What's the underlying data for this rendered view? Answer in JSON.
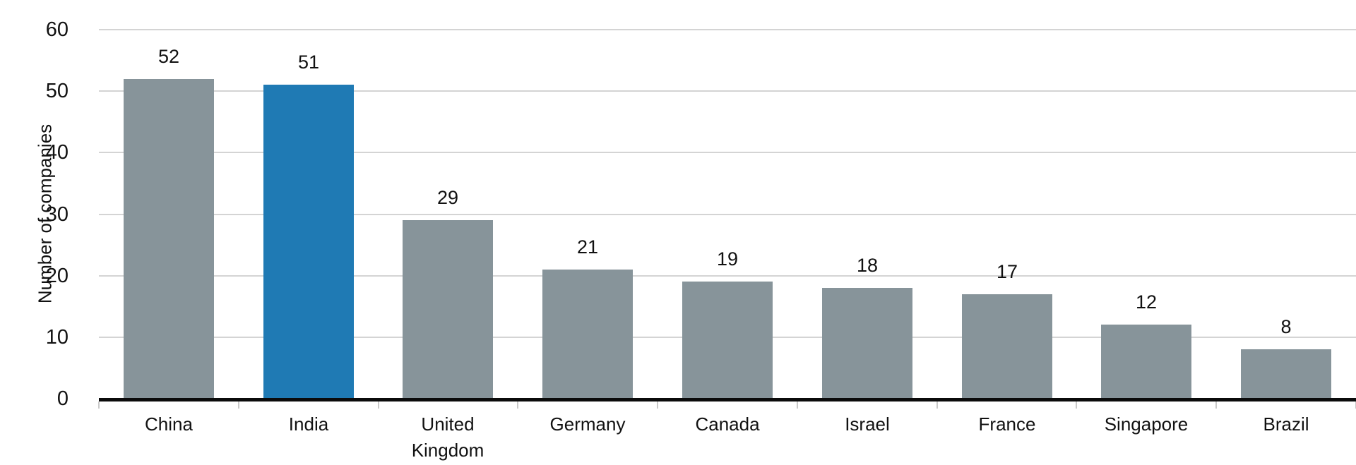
{
  "chart_data": {
    "type": "bar",
    "title": "",
    "xlabel": "",
    "ylabel": "Number of companies",
    "categories": [
      "China",
      "India",
      "United Kingdom",
      "Germany",
      "Canada",
      "Israel",
      "France",
      "Singapore",
      "Brazil"
    ],
    "values": [
      52,
      51,
      29,
      21,
      19,
      18,
      17,
      12,
      8
    ],
    "highlight_category": "India",
    "ylim": [
      0,
      60
    ],
    "yticks": [
      0,
      10,
      20,
      30,
      40,
      50,
      60
    ],
    "grid": "horizontal",
    "legend_position": "none",
    "value_labels": "above-bars",
    "colors": {
      "bar_default": "#87949A",
      "bar_highlight": "#1F7AB4",
      "gridline": "#D4D4D4",
      "axis_line": "#0B0B0B",
      "tick_mark": "#C9C9C9",
      "text": "#111111",
      "background": "#FFFFFF"
    }
  }
}
